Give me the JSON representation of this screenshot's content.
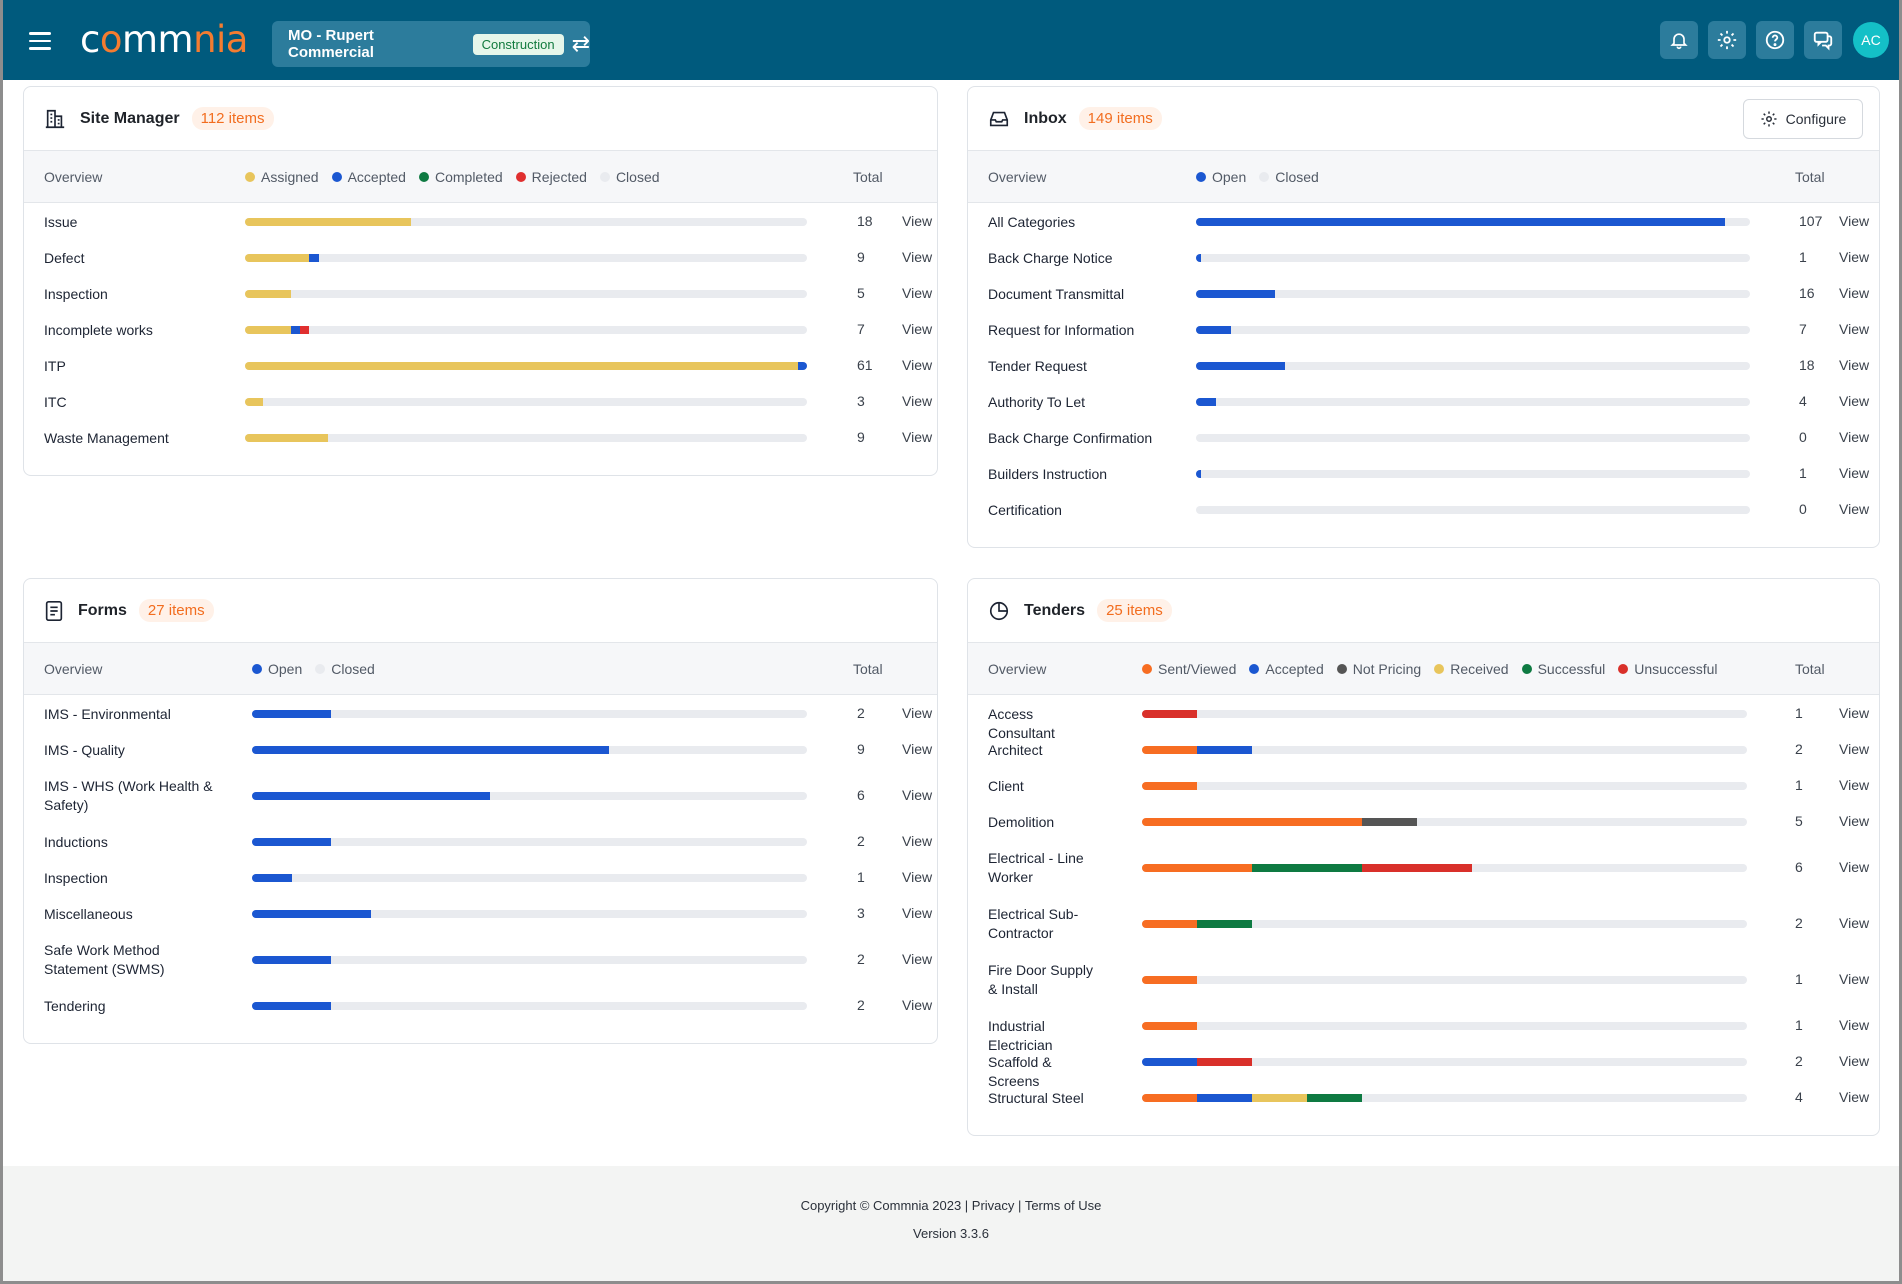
{
  "header": {
    "logo_part1": "c",
    "logo_mark": "o",
    "logo_part2": "mm",
    "logo_part3": "nia",
    "project_name": "MO - Rupert Commercial",
    "project_badge": "Construction",
    "avatar_initials": "AC",
    "icons": [
      "menu-icon",
      "swap-icon",
      "bell-icon",
      "gear-icon",
      "help-icon",
      "chat-icon"
    ]
  },
  "site_manager": {
    "title": "Site Manager",
    "count": "112 items",
    "overview_label": "Overview",
    "total_label": "Total",
    "view_label": "View",
    "legend": [
      {
        "label": "Assigned",
        "color": "#e8c55c"
      },
      {
        "label": "Accepted",
        "color": "#1b57d1"
      },
      {
        "label": "Completed",
        "color": "#0e7a42"
      },
      {
        "label": "Rejected",
        "color": "#e02f2f"
      },
      {
        "label": "Closed",
        "color": "#e9ebef"
      }
    ],
    "max": 61,
    "rows": [
      {
        "label": "Issue",
        "total": "18",
        "values": [
          18,
          0,
          0,
          0
        ]
      },
      {
        "label": "Defect",
        "total": "9",
        "values": [
          7,
          1,
          0,
          0
        ]
      },
      {
        "label": "Inspection",
        "total": "5",
        "values": [
          5,
          0,
          0,
          0
        ]
      },
      {
        "label": "Incomplete works",
        "total": "7",
        "values": [
          5,
          1,
          0,
          1
        ]
      },
      {
        "label": "ITP",
        "total": "61",
        "values": [
          60,
          1,
          0,
          0
        ]
      },
      {
        "label": "ITC",
        "total": "3",
        "values": [
          2,
          0,
          0,
          0
        ]
      },
      {
        "label": "Waste Management",
        "total": "9",
        "values": [
          9,
          0,
          0,
          0
        ]
      }
    ]
  },
  "inbox": {
    "title": "Inbox",
    "count": "149 items",
    "configure_label": "Configure",
    "overview_label": "Overview",
    "total_label": "Total",
    "view_label": "View",
    "legend": [
      {
        "label": "Open",
        "color": "#1b57d1"
      },
      {
        "label": "Closed",
        "color": "#e9ebef"
      }
    ],
    "max": 112,
    "rows": [
      {
        "label": "All Categories",
        "total": "107",
        "values": [
          107
        ]
      },
      {
        "label": "Back Charge Notice",
        "total": "1",
        "values": [
          1
        ]
      },
      {
        "label": "Document Transmittal",
        "total": "16",
        "values": [
          16
        ]
      },
      {
        "label": "Request for Information",
        "total": "7",
        "values": [
          7
        ]
      },
      {
        "label": "Tender Request",
        "total": "18",
        "values": [
          18
        ]
      },
      {
        "label": "Authority To Let",
        "total": "4",
        "values": [
          4
        ]
      },
      {
        "label": "Back Charge Confirmation",
        "total": "0",
        "values": [
          0
        ]
      },
      {
        "label": "Builders Instruction",
        "total": "1",
        "values": [
          1
        ]
      },
      {
        "label": "Certification",
        "total": "0",
        "values": [
          0
        ]
      }
    ]
  },
  "forms": {
    "title": "Forms",
    "count": "27 items",
    "overview_label": "Overview",
    "total_label": "Total",
    "view_label": "View",
    "legend": [
      {
        "label": "Open",
        "color": "#1b57d1"
      },
      {
        "label": "Closed",
        "color": "#e9ebef"
      }
    ],
    "max": 14,
    "rows": [
      {
        "label": "IMS - Environmental",
        "total": "2",
        "values": [
          2
        ]
      },
      {
        "label": "IMS - Quality",
        "total": "9",
        "values": [
          9
        ]
      },
      {
        "label": "IMS - WHS (Work Health & Safety)",
        "total": "6",
        "values": [
          6
        ]
      },
      {
        "label": "Inductions",
        "total": "2",
        "values": [
          2
        ]
      },
      {
        "label": "Inspection",
        "total": "1",
        "values": [
          1
        ]
      },
      {
        "label": "Miscellaneous",
        "total": "3",
        "values": [
          3
        ]
      },
      {
        "label": "Safe Work Method Statement (SWMS)",
        "total": "2",
        "values": [
          2
        ]
      },
      {
        "label": "Tendering",
        "total": "2",
        "values": [
          2
        ]
      }
    ]
  },
  "tenders": {
    "title": "Tenders",
    "count": "25 items",
    "overview_label": "Overview",
    "total_label": "Total",
    "view_label": "View",
    "legend": [
      {
        "label": "Sent/Viewed",
        "color": "#f76d22"
      },
      {
        "label": "Accepted",
        "color": "#1b57d1"
      },
      {
        "label": "Not Pricing",
        "color": "#555555"
      },
      {
        "label": "Received",
        "color": "#e8c55c"
      },
      {
        "label": "Successful",
        "color": "#0e7a42"
      },
      {
        "label": "Unsuccessful",
        "color": "#d9302a"
      }
    ],
    "max": 11,
    "rows": [
      {
        "label": "Access Consultant",
        "total": "1",
        "values": [
          0,
          0,
          0,
          0,
          0,
          1
        ]
      },
      {
        "label": "Architect",
        "total": "2",
        "values": [
          1,
          1,
          0,
          0,
          0,
          0
        ]
      },
      {
        "label": "Client",
        "total": "1",
        "values": [
          1,
          0,
          0,
          0,
          0,
          0
        ]
      },
      {
        "label": "Demolition",
        "total": "5",
        "values": [
          4,
          0,
          1,
          0,
          0,
          0
        ]
      },
      {
        "label": "Electrical - Line Worker",
        "total": "6",
        "values": [
          2,
          0,
          0,
          0,
          2,
          2
        ]
      },
      {
        "label": "Electrical Sub-Contractor",
        "total": "2",
        "values": [
          1,
          0,
          0,
          0,
          1,
          0
        ]
      },
      {
        "label": "Fire Door Supply & Install",
        "total": "1",
        "values": [
          1,
          0,
          0,
          0,
          0,
          0
        ]
      },
      {
        "label": "Industrial Electrician",
        "total": "1",
        "values": [
          1,
          0,
          0,
          0,
          0,
          0
        ]
      },
      {
        "label": "Scaffold & Screens",
        "total": "2",
        "values": [
          0,
          1,
          0,
          0,
          0,
          1
        ]
      },
      {
        "label": "Structural Steel",
        "total": "4",
        "values": [
          1,
          1,
          0,
          1,
          1,
          0
        ]
      }
    ]
  },
  "footer": {
    "copyright": "Copyright © Commnia 2023 |",
    "privacy": "Privacy",
    "sep": "|",
    "terms": "Terms of Use",
    "version": "Version 3.3.6"
  }
}
